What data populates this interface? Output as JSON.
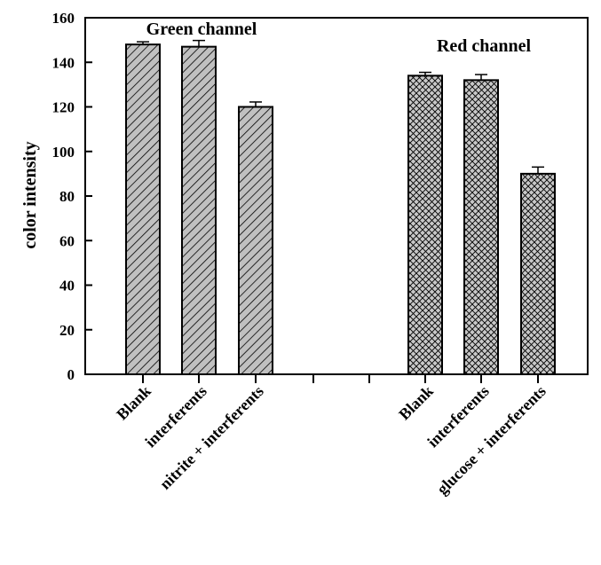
{
  "chart_data": {
    "type": "bar",
    "ylabel": "color intensity",
    "xlabel": "",
    "ylim": [
      0,
      160
    ],
    "yticks": [
      0,
      20,
      40,
      60,
      80,
      100,
      120,
      140,
      160
    ],
    "grid": false,
    "groups": [
      {
        "label": "Green channel",
        "pattern": "diagonal-hatch",
        "fill_color": "#c0c0c0",
        "categories": [
          "Blank",
          "interferents",
          "nitrite + interferents"
        ],
        "values": [
          148,
          147,
          120
        ],
        "errors": [
          1.2,
          2.8,
          2.2
        ]
      },
      {
        "label": "Red channel",
        "pattern": "cross-hatch",
        "fill_color": "#c8c8c8",
        "categories": [
          "Blank",
          "interferents",
          "glucose + interferents"
        ],
        "values": [
          134,
          132,
          90
        ],
        "errors": [
          1.5,
          2.5,
          3.0
        ]
      }
    ]
  }
}
